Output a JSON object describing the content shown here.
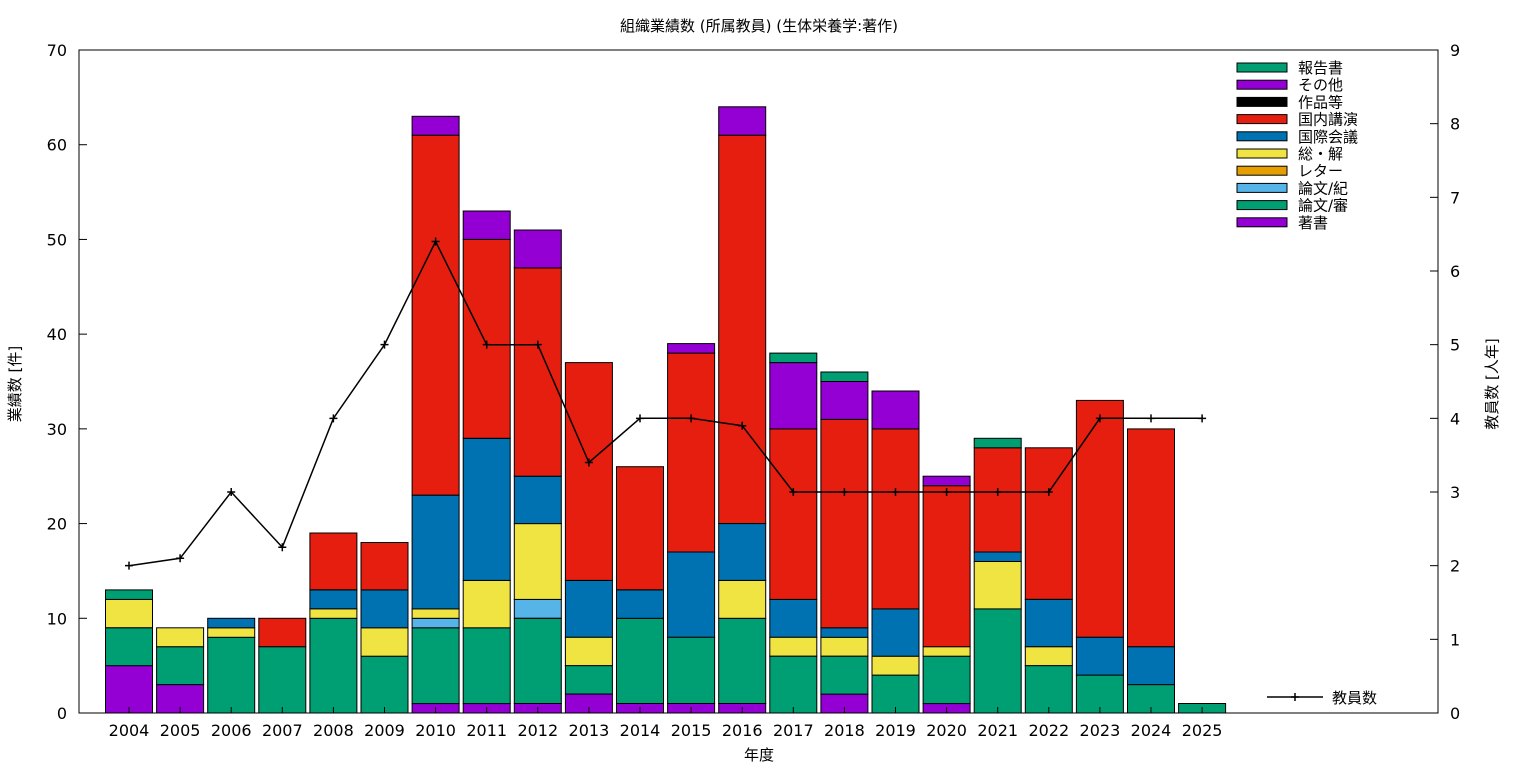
{
  "chart_data": {
    "type": "bar",
    "stacked": true,
    "title": "組織業績数 (所属教員) (生体栄養学:著作)",
    "xlabel": "年度",
    "ylabel": "業績数 [件]",
    "y2label": "教員数 [人年]",
    "ylim": [
      0,
      70
    ],
    "y2lim": [
      0,
      9
    ],
    "yticks": [
      0,
      10,
      20,
      30,
      40,
      50,
      60,
      70
    ],
    "y2ticks": [
      0,
      1,
      2,
      3,
      4,
      5,
      6,
      7,
      8,
      9
    ],
    "grid": false,
    "legend_position": "top-right",
    "categories": [
      "2004",
      "2005",
      "2006",
      "2007",
      "2008",
      "2009",
      "2010",
      "2011",
      "2012",
      "2013",
      "2014",
      "2015",
      "2016",
      "2017",
      "2018",
      "2019",
      "2020",
      "2021",
      "2022",
      "2023",
      "2024",
      "2025"
    ],
    "series": [
      {
        "name": "著書",
        "color": "#9400d3",
        "values": [
          5,
          3,
          0,
          0,
          0,
          0,
          1,
          1,
          1,
          2,
          1,
          1,
          1,
          0,
          2,
          0,
          1,
          0,
          0,
          0,
          0,
          0
        ]
      },
      {
        "name": "論文/審",
        "color": "#009e73",
        "values": [
          4,
          4,
          8,
          7,
          10,
          6,
          8,
          8,
          9,
          3,
          9,
          7,
          9,
          6,
          4,
          4,
          5,
          11,
          5,
          4,
          3,
          1
        ]
      },
      {
        "name": "論文/紀",
        "color": "#56b4e9",
        "values": [
          0,
          0,
          0,
          0,
          0,
          0,
          1,
          0,
          2,
          0,
          0,
          0,
          0,
          0,
          0,
          0,
          0,
          0,
          0,
          0,
          0,
          0
        ]
      },
      {
        "name": "レター",
        "color": "#e69f00",
        "values": [
          0,
          0,
          0,
          0,
          0,
          0,
          0,
          0,
          0,
          0,
          0,
          0,
          0,
          0,
          0,
          0,
          0,
          0,
          0,
          0,
          0,
          0
        ]
      },
      {
        "name": "総・解",
        "color": "#f0e442",
        "values": [
          3,
          2,
          1,
          0,
          1,
          3,
          1,
          5,
          8,
          3,
          0,
          0,
          4,
          2,
          2,
          2,
          1,
          5,
          2,
          0,
          0,
          0
        ]
      },
      {
        "name": "国際会議",
        "color": "#0072b2",
        "values": [
          0,
          0,
          1,
          0,
          2,
          4,
          12,
          15,
          5,
          6,
          3,
          9,
          6,
          4,
          1,
          5,
          0,
          1,
          5,
          4,
          4,
          0
        ]
      },
      {
        "name": "国内講演",
        "color": "#e51e10",
        "values": [
          0,
          0,
          0,
          3,
          6,
          5,
          38,
          21,
          22,
          23,
          13,
          21,
          41,
          18,
          22,
          19,
          17,
          11,
          16,
          25,
          23,
          0
        ]
      },
      {
        "name": "作品等",
        "color": "#000000",
        "values": [
          0,
          0,
          0,
          0,
          0,
          0,
          0,
          0,
          0,
          0,
          0,
          0,
          0,
          0,
          0,
          0,
          0,
          0,
          0,
          0,
          0,
          0
        ]
      },
      {
        "name": "その他",
        "color": "#9400d3",
        "values": [
          0,
          0,
          0,
          0,
          0,
          0,
          2,
          3,
          4,
          0,
          0,
          1,
          3,
          7,
          4,
          4,
          1,
          0,
          0,
          0,
          0,
          0
        ]
      },
      {
        "name": "報告書",
        "color": "#009e73",
        "values": [
          1,
          0,
          0,
          0,
          0,
          0,
          0,
          0,
          0,
          0,
          0,
          0,
          0,
          1,
          1,
          0,
          0,
          1,
          0,
          0,
          0,
          0
        ]
      }
    ],
    "line_series": {
      "name": "教員数",
      "color": "#000000",
      "axis": "y2",
      "values": [
        2.0,
        2.1,
        3.0,
        2.25,
        4.0,
        5.0,
        6.4,
        5.0,
        5.0,
        3.4,
        4.0,
        4.0,
        3.9,
        3.0,
        3.0,
        3.0,
        3.0,
        3.0,
        3.0,
        4.0,
        4.0,
        4.0
      ]
    }
  }
}
